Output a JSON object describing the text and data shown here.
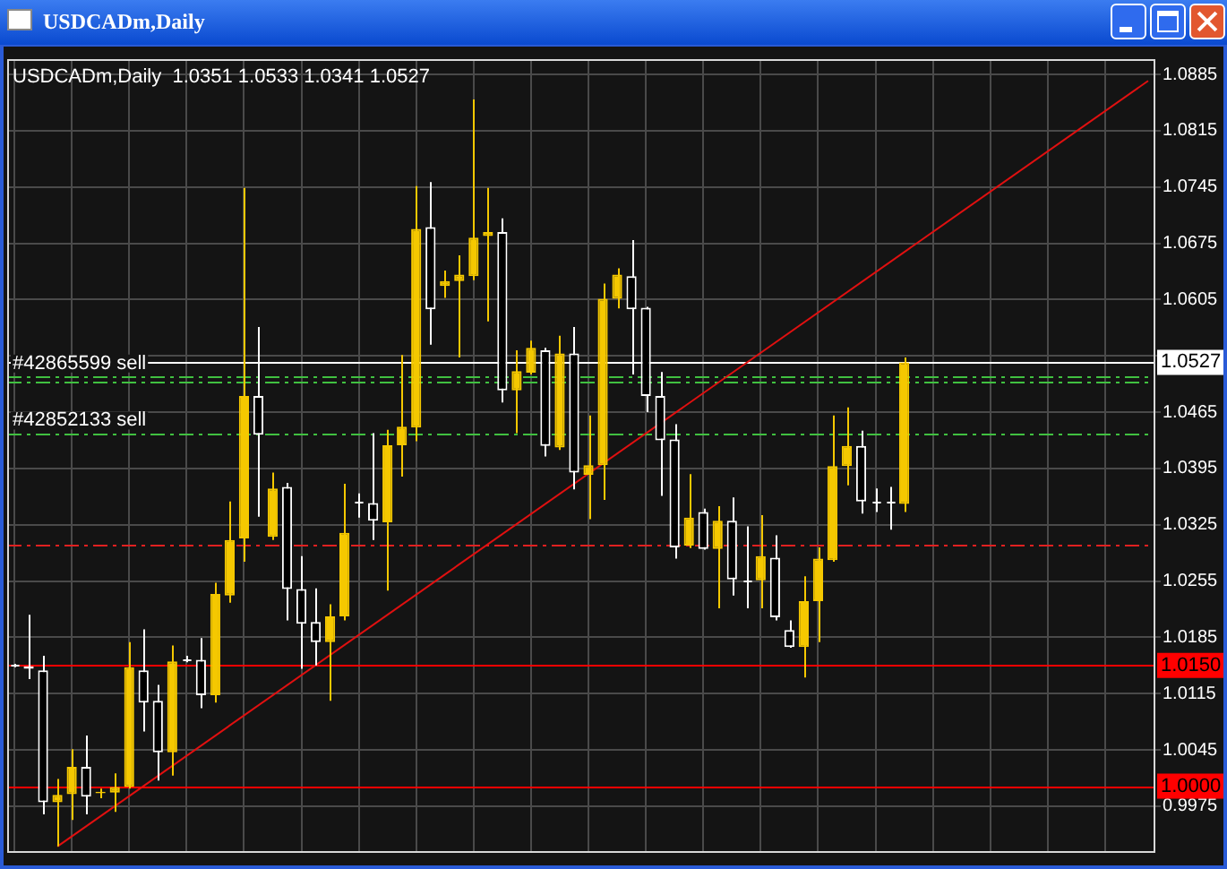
{
  "chart_data": {
    "type": "candlestick",
    "title": "USDCADm,Daily",
    "subtitle": "USDCADm,Daily  1.0351 1.0533 1.0341 1.0527",
    "categories": [
      null,
      null,
      null,
      null,
      null,
      null,
      null,
      null,
      null,
      null,
      null,
      null,
      null,
      null,
      null,
      null,
      null,
      null,
      null,
      null,
      null,
      null,
      null,
      null,
      null,
      null,
      null,
      null,
      null,
      null,
      null,
      null,
      null,
      null,
      null,
      null,
      null,
      null,
      null,
      null,
      null,
      null,
      null,
      null,
      null,
      null,
      null,
      null,
      null,
      null,
      null,
      null,
      null,
      null,
      null,
      null,
      null,
      null,
      null,
      null,
      null,
      null,
      null,
      null,
      null,
      null,
      null,
      null,
      null,
      null,
      null,
      null,
      null,
      null,
      null,
      null,
      null,
      null,
      null,
      null
    ],
    "ohlc": [
      [
        1.015,
        1.0152,
        1.0148,
        1.015
      ],
      [
        1.0149,
        1.0213,
        1.0133,
        1.0146
      ],
      [
        1.0144,
        1.0162,
        0.9965,
        0.998
      ],
      [
        0.998,
        1.0009,
        0.9925,
        0.9989
      ],
      [
        0.999,
        1.0046,
        0.9958,
        1.0024
      ],
      [
        1.0024,
        1.0063,
        0.9965,
        0.9987
      ],
      [
        0.9991,
        0.9997,
        0.9985,
        0.9993
      ],
      [
        0.9992,
        1.0016,
        0.9968,
        0.9999
      ],
      [
        0.9999,
        1.0179,
        0.9997,
        1.0148
      ],
      [
        1.0144,
        1.0195,
        1.0068,
        1.0104
      ],
      [
        1.0106,
        1.0126,
        1.0007,
        1.0042
      ],
      [
        1.0042,
        1.0175,
        1.0013,
        1.0155
      ],
      [
        1.0157,
        1.0162,
        1.0154,
        1.0157
      ],
      [
        1.0157,
        1.0184,
        1.0097,
        1.0113
      ],
      [
        1.0113,
        1.0253,
        1.0104,
        1.0239
      ],
      [
        1.0237,
        1.0354,
        1.0228,
        1.0306
      ],
      [
        1.0308,
        1.0744,
        1.0279,
        1.0485
      ],
      [
        1.0485,
        1.0571,
        1.0335,
        1.0437
      ],
      [
        1.031,
        1.039,
        1.0306,
        1.037
      ],
      [
        1.0372,
        1.0377,
        1.0206,
        1.0245
      ],
      [
        1.0245,
        1.0286,
        1.0146,
        1.0202
      ],
      [
        1.0204,
        1.0246,
        1.015,
        1.0179
      ],
      [
        1.0179,
        1.0226,
        1.0106,
        1.0211
      ],
      [
        1.0211,
        1.0376,
        1.0206,
        1.0315
      ],
      [
        1.0354,
        1.0364,
        1.0334,
        1.0354
      ],
      [
        1.0352,
        1.0439,
        1.0306,
        1.033
      ],
      [
        1.0328,
        1.0443,
        1.0243,
        1.0424
      ],
      [
        1.0424,
        1.0536,
        1.0385,
        1.0447
      ],
      [
        1.0446,
        1.0746,
        1.0429,
        1.0693
      ],
      [
        1.0695,
        1.0751,
        1.0549,
        1.0593
      ],
      [
        1.0622,
        1.0641,
        1.0607,
        1.0628
      ],
      [
        1.0628,
        1.066,
        1.0533,
        1.0636
      ],
      [
        1.0634,
        1.0854,
        1.0629,
        1.0682
      ],
      [
        1.0684,
        1.0744,
        1.0578,
        1.0689
      ],
      [
        1.0689,
        1.0706,
        1.0477,
        1.0492
      ],
      [
        1.0492,
        1.0542,
        1.0439,
        1.0516
      ],
      [
        1.0514,
        1.0554,
        1.0512,
        1.0545
      ],
      [
        1.0542,
        1.0545,
        1.041,
        1.0423
      ],
      [
        1.0421,
        1.056,
        1.0418,
        1.0538
      ],
      [
        1.0538,
        1.0571,
        1.0369,
        1.039
      ],
      [
        1.0387,
        1.0461,
        1.0332,
        1.0399
      ],
      [
        1.0399,
        1.0625,
        1.0356,
        1.0606
      ],
      [
        1.0606,
        1.0644,
        1.0594,
        1.0636
      ],
      [
        1.0634,
        1.0679,
        1.0512,
        1.0593
      ],
      [
        1.0595,
        1.0596,
        1.0465,
        1.0485
      ],
      [
        1.0485,
        1.0515,
        1.0361,
        1.043
      ],
      [
        1.0431,
        1.045,
        1.0283,
        1.0297
      ],
      [
        1.0299,
        1.0388,
        1.0296,
        1.0334
      ],
      [
        1.0341,
        1.0345,
        1.0294,
        1.0295
      ],
      [
        1.0295,
        1.0348,
        1.0221,
        1.033
      ],
      [
        1.033,
        1.0359,
        1.0237,
        1.0257
      ],
      [
        1.0256,
        1.0323,
        1.0221,
        1.0256
      ],
      [
        1.0256,
        1.0337,
        1.0221,
        1.0286
      ],
      [
        1.0284,
        1.0312,
        1.0206,
        1.021
      ],
      [
        1.0194,
        1.0206,
        1.0172,
        1.0173
      ],
      [
        1.0173,
        1.0261,
        1.0135,
        1.023
      ],
      [
        1.023,
        1.0297,
        1.0179,
        1.0283
      ],
      [
        1.0281,
        1.0461,
        1.0279,
        1.0398
      ],
      [
        1.0398,
        1.0471,
        1.0374,
        1.0423
      ],
      [
        1.0423,
        1.0442,
        1.0339,
        1.0354
      ],
      [
        1.0353,
        1.037,
        1.0341,
        1.0353
      ],
      [
        1.0353,
        1.0372,
        1.0319,
        1.0353
      ],
      [
        1.0351,
        1.0533,
        1.0341,
        1.0527
      ],
      null,
      null,
      null,
      null,
      null,
      null,
      null,
      null,
      null,
      null,
      null,
      null,
      null,
      null,
      null,
      null,
      null
    ],
    "series": [
      {
        "type": "line",
        "color": "#e01010",
        "values": [
          null,
          null,
          null,
          0.9925,
          null,
          null,
          null,
          null,
          null,
          null,
          null,
          null,
          null,
          null,
          null,
          null,
          null,
          null,
          null,
          null,
          null,
          null,
          null,
          null,
          null,
          null,
          null,
          null,
          null,
          null,
          null,
          null,
          null,
          null,
          null,
          null,
          null,
          null,
          null,
          null,
          null,
          null,
          null,
          null,
          null,
          null,
          null,
          null,
          null,
          null,
          null,
          null,
          null,
          null,
          null,
          null,
          null,
          null,
          null,
          null,
          null,
          null,
          null,
          null,
          null,
          null,
          null,
          null,
          null,
          null,
          null,
          null,
          null,
          null,
          null,
          null,
          null,
          null,
          null,
          1.0877
        ]
      }
    ],
    "ylim": [
      0.9917,
      1.0904
    ],
    "yticks": [
      0.9975,
      1.0045,
      1.0115,
      1.0185,
      1.0255,
      1.0325,
      1.0395,
      1.0465,
      {
        "value": 1.0535,
        "label": null
      },
      1.0605,
      1.0675,
      1.0745,
      1.0815,
      1.0885
    ],
    "ref_lines": [
      {
        "axis": "y",
        "value": 1.015,
        "label": "1.0150",
        "color": "#ff0000",
        "line_style": "solid"
      },
      {
        "axis": "y",
        "value": 1.0,
        "label": "1.0000",
        "color": "#ff0000",
        "line_style": "solid"
      },
      {
        "axis": "y",
        "value": 1.0527,
        "label": "1.0527",
        "color": "#ffffff",
        "line_style": "solid"
      },
      {
        "axis": "y",
        "value": 1.03,
        "color": "#e02020",
        "line_style": "dashed"
      },
      {
        "axis": "y",
        "value": 1.051,
        "label": "#42865599 sell",
        "color": "#40c040",
        "line_style": "dashed"
      },
      {
        "axis": "y",
        "value": 1.0502,
        "color": "#40c040",
        "line_style": "dashed"
      },
      {
        "axis": "y",
        "value": 1.0439,
        "label": "#42852133 sell",
        "color": "#40c040",
        "line_style": "dashed"
      }
    ],
    "grid": true,
    "tick_labels": "y",
    "marker": "none"
  }
}
